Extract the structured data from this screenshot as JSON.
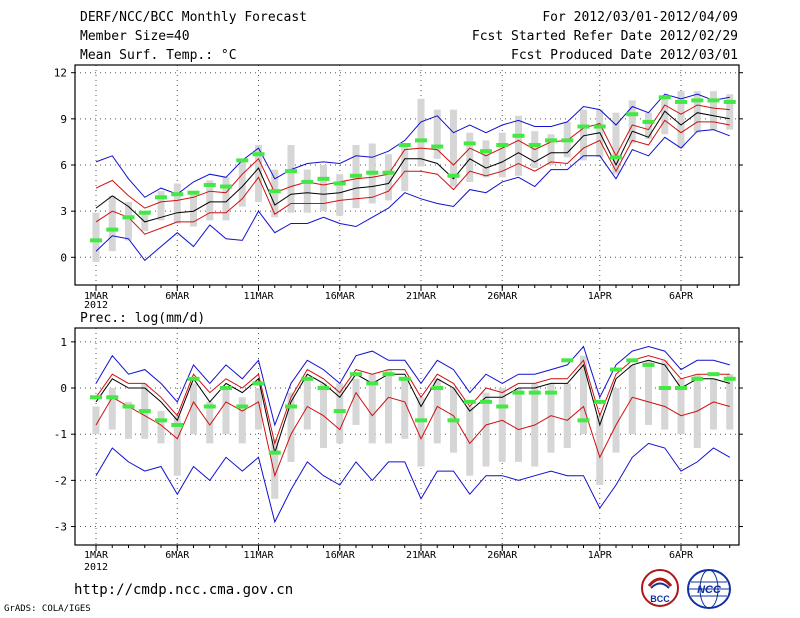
{
  "header": {
    "title": "DERF/NCC/BCC Monthly Forecast",
    "member_size": "Member Size=40",
    "variable": "Mean Surf. Temp.: °C",
    "period": "For 2012/03/01-2012/04/09",
    "refer_date": "Fcst Started Refer Date 2012/02/29",
    "produced_date": "Fcst Produced Date 2012/03/01"
  },
  "footer": {
    "url": "http://cmdp.ncc.cma.gov.cn",
    "credit": "GrADS: COLA/IGES",
    "logo_bcc": "BCC",
    "logo_ncc": "NCC"
  },
  "colors": {
    "box": "#d6d6d6",
    "obs": "#44e844",
    "median": "#000000",
    "inner": "#d01010",
    "outer": "#1010d0",
    "grid": "#555555"
  },
  "chart_data": [
    {
      "type": "line",
      "title": "Mean Surf. Temp.: °C",
      "x": [
        1,
        2,
        3,
        4,
        5,
        6,
        7,
        8,
        9,
        10,
        11,
        12,
        13,
        14,
        15,
        16,
        17,
        18,
        19,
        20,
        21,
        22,
        23,
        24,
        25,
        26,
        27,
        28,
        29,
        30,
        31,
        32,
        33,
        34,
        35,
        36,
        37,
        38,
        39,
        40
      ],
      "xtick_labels": [
        "1MAR",
        "6MAR",
        "11MAR",
        "16MAR",
        "21MAR",
        "26MAR",
        "1APR",
        "6APR"
      ],
      "xtick_days": [
        1,
        6,
        11,
        16,
        21,
        26,
        32,
        37
      ],
      "year_label": "2012",
      "ylim": [
        -1.8,
        12.5
      ],
      "yticks": [
        0,
        3,
        6,
        9,
        12
      ],
      "series": [
        {
          "name": "max",
          "values": [
            6.2,
            6.6,
            5.1,
            3.9,
            4.5,
            4.1,
            4.9,
            5.4,
            5.2,
            6.3,
            7.1,
            5.1,
            5.7,
            6.1,
            6.2,
            6.1,
            6.6,
            6.5,
            6.9,
            7.6,
            8.8,
            9.2,
            8.1,
            8.6,
            8.1,
            8.6,
            8.9,
            8.5,
            8.5,
            8.8,
            9.8,
            9.6,
            8.6,
            9.8,
            9.4,
            10.6,
            10.3,
            10.6,
            10.2,
            10.4
          ]
        },
        {
          "name": "upper",
          "values": [
            4.5,
            5.0,
            4.0,
            3.2,
            3.6,
            3.7,
            3.9,
            4.3,
            4.2,
            5.4,
            6.4,
            4.2,
            4.6,
            4.9,
            4.7,
            4.9,
            5.1,
            5.2,
            5.4,
            7.0,
            7.1,
            7.0,
            6.0,
            7.1,
            6.6,
            7.1,
            7.6,
            7.0,
            7.5,
            7.6,
            8.4,
            8.7,
            6.6,
            8.6,
            8.3,
            9.9,
            9.3,
            9.9,
            9.7,
            9.6
          ]
        },
        {
          "name": "median",
          "values": [
            3.2,
            4.0,
            3.3,
            2.3,
            2.6,
            2.9,
            3.0,
            3.6,
            3.6,
            4.6,
            5.8,
            3.4,
            4.1,
            4.2,
            4.1,
            4.2,
            4.5,
            4.6,
            4.8,
            6.4,
            6.4,
            6.1,
            5.1,
            6.4,
            5.8,
            6.2,
            6.8,
            6.2,
            6.8,
            6.8,
            7.9,
            8.1,
            6.0,
            8.2,
            7.8,
            9.5,
            8.6,
            9.4,
            9.2,
            9.0
          ]
        },
        {
          "name": "lower",
          "values": [
            2.3,
            3.0,
            2.6,
            1.5,
            1.9,
            2.3,
            2.3,
            2.9,
            2.9,
            3.8,
            5.2,
            2.8,
            3.5,
            3.5,
            3.5,
            3.7,
            3.8,
            3.9,
            4.3,
            5.6,
            5.6,
            5.4,
            4.4,
            5.6,
            5.3,
            5.6,
            6.1,
            5.6,
            6.2,
            6.1,
            7.1,
            7.6,
            5.6,
            7.6,
            7.3,
            8.9,
            8.1,
            8.8,
            8.8,
            8.6
          ]
        },
        {
          "name": "min",
          "values": [
            0.4,
            1.4,
            1.2,
            -0.2,
            0.7,
            1.6,
            0.7,
            2.1,
            1.2,
            1.1,
            3.0,
            1.6,
            2.2,
            2.2,
            2.6,
            2.2,
            2.0,
            2.6,
            3.2,
            4.2,
            3.8,
            3.5,
            3.3,
            4.4,
            4.2,
            4.9,
            5.2,
            4.6,
            5.7,
            5.7,
            6.6,
            6.6,
            5.1,
            7.0,
            6.6,
            7.8,
            7.1,
            8.2,
            8.3,
            7.9
          ]
        },
        {
          "name": "box_top",
          "values": [
            2.9,
            4.0,
            3.6,
            2.8,
            4.3,
            4.8,
            4.3,
            5.0,
            5.2,
            6.3,
            7.3,
            5.7,
            7.3,
            5.7,
            6.0,
            5.4,
            7.3,
            7.4,
            6.7,
            7.3,
            10.3,
            9.6,
            9.6,
            8.1,
            7.6,
            8.1,
            9.2,
            8.2,
            8.0,
            8.8,
            9.6,
            9.6,
            9.4,
            10.2,
            9.4,
            10.4,
            10.8,
            10.8,
            10.8,
            10.6
          ]
        },
        {
          "name": "box_bottom",
          "values": [
            -0.3,
            0.4,
            1.1,
            1.7,
            2.4,
            2.2,
            2.0,
            2.4,
            2.4,
            3.3,
            3.6,
            2.6,
            2.9,
            2.9,
            3.0,
            2.7,
            3.2,
            3.5,
            3.7,
            4.3,
            5.9,
            6.4,
            4.6,
            4.9,
            5.2,
            5.2,
            5.3,
            5.8,
            6.0,
            6.5,
            6.3,
            6.5,
            5.4,
            7.4,
            7.7,
            8.0,
            7.1,
            8.1,
            8.3,
            8.3
          ]
        },
        {
          "name": "observed",
          "values": [
            1.1,
            1.8,
            2.6,
            2.9,
            3.9,
            4.1,
            4.2,
            4.7,
            4.6,
            6.3,
            6.7,
            4.3,
            5.6,
            4.9,
            5.1,
            4.8,
            5.3,
            5.5,
            5.5,
            7.3,
            7.6,
            7.2,
            5.3,
            7.4,
            6.9,
            7.3,
            7.9,
            7.3,
            7.6,
            7.6,
            8.5,
            8.5,
            6.5,
            9.3,
            8.8,
            10.4,
            10.1,
            10.2,
            10.2,
            10.1
          ]
        }
      ]
    },
    {
      "type": "line",
      "title": "Prec.: log(mm/d)",
      "x": [
        1,
        2,
        3,
        4,
        5,
        6,
        7,
        8,
        9,
        10,
        11,
        12,
        13,
        14,
        15,
        16,
        17,
        18,
        19,
        20,
        21,
        22,
        23,
        24,
        25,
        26,
        27,
        28,
        29,
        30,
        31,
        32,
        33,
        34,
        35,
        36,
        37,
        38,
        39,
        40
      ],
      "xtick_labels": [
        "1MAR",
        "6MAR",
        "11MAR",
        "16MAR",
        "21MAR",
        "26MAR",
        "1APR",
        "6APR"
      ],
      "xtick_days": [
        1,
        6,
        11,
        16,
        21,
        26,
        32,
        37
      ],
      "year_label": "2012",
      "ylim": [
        -3.4,
        1.3
      ],
      "yticks": [
        -3,
        -2,
        -1,
        0,
        1
      ],
      "series": [
        {
          "name": "max",
          "values": [
            0.1,
            0.7,
            0.3,
            0.4,
            0.1,
            -0.3,
            0.5,
            0.1,
            0.5,
            0.2,
            0.6,
            -0.8,
            0.1,
            0.6,
            0.4,
            0.1,
            0.7,
            0.8,
            0.6,
            0.6,
            0.1,
            0.6,
            0.4,
            -0.1,
            0.3,
            0.1,
            0.3,
            0.3,
            0.4,
            0.5,
            0.9,
            -0.2,
            0.5,
            0.8,
            0.9,
            0.8,
            0.4,
            0.6,
            0.6,
            0.5
          ]
        },
        {
          "name": "upper",
          "values": [
            -0.2,
            0.3,
            0.1,
            0.1,
            -0.2,
            -0.6,
            0.3,
            -0.1,
            0.2,
            0.0,
            0.3,
            -1.2,
            -0.2,
            0.4,
            0.2,
            -0.1,
            0.4,
            0.3,
            0.4,
            0.4,
            -0.2,
            0.3,
            0.1,
            -0.4,
            0.0,
            -0.1,
            0.1,
            0.1,
            0.2,
            0.2,
            0.6,
            -0.6,
            0.3,
            0.6,
            0.7,
            0.6,
            0.2,
            0.3,
            0.3,
            0.3
          ]
        },
        {
          "name": "median",
          "values": [
            -0.3,
            0.2,
            0.0,
            0.0,
            -0.3,
            -0.7,
            0.2,
            -0.3,
            0.1,
            -0.1,
            0.2,
            -1.4,
            -0.3,
            0.3,
            0.1,
            -0.2,
            0.3,
            0.1,
            0.3,
            0.3,
            -0.4,
            0.2,
            0.0,
            -0.5,
            -0.2,
            -0.2,
            0.0,
            0.0,
            0.1,
            0.1,
            0.5,
            -0.8,
            0.2,
            0.5,
            0.6,
            0.5,
            0.0,
            0.2,
            0.2,
            0.1
          ]
        },
        {
          "name": "lower",
          "values": [
            -0.8,
            -0.2,
            -0.4,
            -0.6,
            -0.8,
            -1.1,
            -0.3,
            -0.8,
            -0.3,
            -0.5,
            -0.3,
            -1.9,
            -1.0,
            -0.4,
            -0.6,
            -0.9,
            -0.1,
            -0.6,
            -0.2,
            -0.3,
            -1.1,
            -0.4,
            -0.6,
            -1.2,
            -0.8,
            -0.7,
            -0.9,
            -0.8,
            -0.6,
            -0.7,
            -0.4,
            -1.5,
            -0.8,
            -0.2,
            -0.3,
            -0.4,
            -0.6,
            -0.5,
            -0.3,
            -0.4
          ]
        },
        {
          "name": "min",
          "values": [
            -1.9,
            -1.3,
            -1.6,
            -1.8,
            -1.7,
            -2.3,
            -1.7,
            -2.0,
            -1.5,
            -1.8,
            -1.5,
            -2.9,
            -2.2,
            -1.6,
            -1.9,
            -2.1,
            -1.6,
            -2.0,
            -1.6,
            -1.6,
            -2.4,
            -1.8,
            -1.8,
            -2.3,
            -1.9,
            -1.9,
            -2.0,
            -1.9,
            -1.8,
            -1.9,
            -1.9,
            -2.6,
            -2.1,
            -1.5,
            -1.2,
            -1.3,
            -1.8,
            -1.6,
            -1.3,
            -1.5
          ]
        },
        {
          "name": "box_top",
          "values": [
            -0.4,
            0.0,
            -0.3,
            0.1,
            -0.5,
            -0.6,
            0.1,
            -0.3,
            0.0,
            -0.2,
            0.0,
            -1.1,
            -0.1,
            0.2,
            0.1,
            0.1,
            0.2,
            0.3,
            0.4,
            0.2,
            -0.2,
            0.2,
            0.0,
            -0.4,
            -0.1,
            0.0,
            0.0,
            0.1,
            0.1,
            0.1,
            0.7,
            -0.6,
            0.0,
            0.5,
            0.6,
            0.6,
            0.2,
            0.3,
            0.2,
            0.3
          ]
        },
        {
          "name": "box_bottom",
          "values": [
            -1.0,
            -0.9,
            -1.1,
            -1.1,
            -1.2,
            -1.9,
            -1.0,
            -1.2,
            -1.0,
            -1.2,
            -0.9,
            -2.4,
            -1.6,
            -0.9,
            -1.3,
            -1.2,
            -0.8,
            -1.2,
            -1.2,
            -1.1,
            -1.7,
            -1.2,
            -1.4,
            -1.9,
            -1.7,
            -1.6,
            -1.6,
            -1.7,
            -1.4,
            -1.3,
            -1.0,
            -2.1,
            -1.4,
            -1.0,
            -0.8,
            -0.9,
            -1.0,
            -1.3,
            -0.9,
            -0.9
          ]
        },
        {
          "name": "observed",
          "values": [
            -0.2,
            -0.2,
            -0.4,
            -0.5,
            -0.7,
            -0.8,
            0.2,
            -0.4,
            0.0,
            -0.4,
            0.1,
            -1.4,
            -0.4,
            0.2,
            0.0,
            -0.5,
            0.3,
            0.1,
            0.3,
            0.2,
            -0.7,
            0.0,
            -0.7,
            -0.3,
            -0.3,
            -0.4,
            -0.1,
            -0.1,
            -0.1,
            0.6,
            -0.7,
            -0.3,
            0.4,
            0.6,
            0.5,
            0.0,
            0.0,
            0.2,
            0.3,
            0.2
          ]
        }
      ]
    }
  ]
}
